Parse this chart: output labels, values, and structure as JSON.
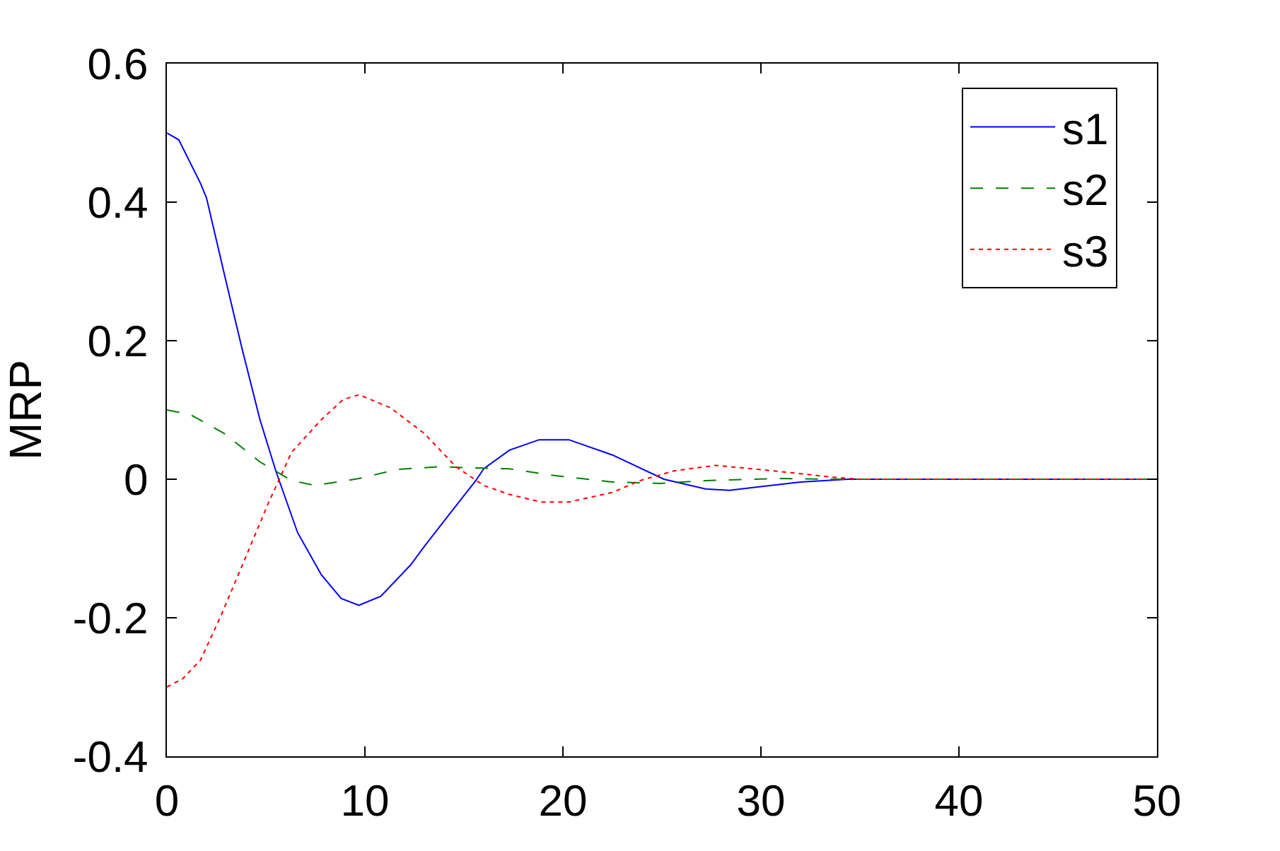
{
  "chart_data": {
    "type": "line",
    "ylabel": "MRP",
    "xlim": [
      0,
      50
    ],
    "ylim": [
      -0.4,
      0.6
    ],
    "xticks": [
      0,
      10,
      20,
      30,
      40,
      50
    ],
    "yticks": [
      -0.4,
      -0.2,
      0,
      0.2,
      0.4,
      0.6
    ],
    "grid": false,
    "legend": "top right",
    "series": [
      {
        "name": "s1",
        "color": "#0000ff",
        "line_style": "solid",
        "x": [
          0,
          0.6,
          1.7,
          2,
          3,
          3.8,
          4.7,
          5.5,
          6.6,
          7.8,
          8.8,
          9.7,
          10.8,
          12.3,
          13,
          14.2,
          15.6,
          16,
          17.3,
          18.8,
          20.3,
          22.5,
          25.1,
          27.2,
          28.4,
          29.6,
          32,
          34.4,
          50
        ],
        "values": [
          0.5,
          0.49,
          0.427,
          0.406,
          0.284,
          0.188,
          0.086,
          0.012,
          -0.077,
          -0.138,
          -0.172,
          -0.182,
          -0.169,
          -0.124,
          -0.097,
          -0.053,
          -0.002,
          0.015,
          0.042,
          0.057,
          0.057,
          0.035,
          0,
          -0.014,
          -0.016,
          -0.012,
          -0.004,
          0,
          0
        ]
      },
      {
        "name": "s2",
        "color": "#008000",
        "line_style": "dashed",
        "x": [
          0,
          1.2,
          2.9,
          4.7,
          6.3,
          7.5,
          9.7,
          11.6,
          13.7,
          16,
          17.3,
          19.4,
          22.5,
          24.9,
          27.2,
          30.8,
          34,
          50
        ],
        "values": [
          0.1,
          0.093,
          0.066,
          0.025,
          -0.002,
          -0.009,
          0.001,
          0.014,
          0.018,
          0.016,
          0.015,
          0.006,
          -0.004,
          -0.006,
          -0.002,
          0.001,
          0,
          0
        ]
      },
      {
        "name": "s3",
        "color": "#ff0000",
        "line_style": "dotted",
        "x": [
          0,
          0.8,
          1.7,
          2.7,
          3.9,
          5.1,
          6.3,
          7.8,
          8.9,
          9.7,
          11.3,
          13,
          14.6,
          16,
          17.3,
          18.9,
          20.3,
          22.5,
          23.9,
          25.6,
          27.7,
          29.6,
          32,
          33.6,
          35,
          50
        ],
        "values": [
          -0.3,
          -0.288,
          -0.261,
          -0.199,
          -0.118,
          -0.036,
          0.039,
          0.086,
          0.115,
          0.122,
          0.103,
          0.066,
          0.018,
          -0.009,
          -0.022,
          -0.033,
          -0.033,
          -0.019,
          -0.002,
          0.012,
          0.02,
          0.015,
          0.008,
          0.003,
          0,
          0
        ]
      }
    ]
  }
}
